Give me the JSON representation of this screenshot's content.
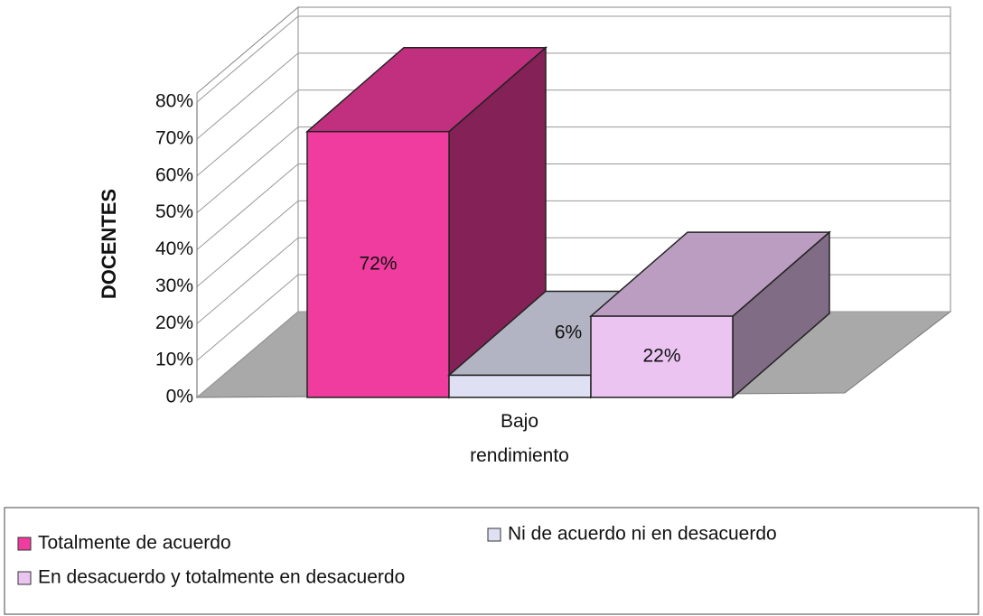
{
  "chart_data": {
    "type": "bar3d",
    "y_label": "DOCENTES",
    "categories": [
      "Bajo rendimiento"
    ],
    "series": [
      {
        "name": "Totalmente de acuerdo",
        "color": "#f03c9e",
        "values": [
          72
        ],
        "value_labels": [
          "72%"
        ]
      },
      {
        "name": "Ni de acuerdo ni en desacuerdo",
        "color": "#dfe0f4",
        "values": [
          6
        ],
        "value_labels": [
          "6%"
        ]
      },
      {
        "name": "En desacuerdo y totalmente en desacuerdo",
        "color": "#ebc4f2",
        "values": [
          22
        ],
        "value_labels": [
          "22%"
        ]
      }
    ],
    "ylim": [
      0,
      80
    ],
    "yticks": [
      {
        "value": 0,
        "label": "0%"
      },
      {
        "value": 10,
        "label": "10%"
      },
      {
        "value": 20,
        "label": "20%"
      },
      {
        "value": 30,
        "label": "30%"
      },
      {
        "value": 40,
        "label": "40%"
      },
      {
        "value": 50,
        "label": "50%"
      },
      {
        "value": 60,
        "label": "60%"
      },
      {
        "value": 70,
        "label": "70%"
      },
      {
        "value": 80,
        "label": "80%"
      }
    ],
    "grid": true
  }
}
